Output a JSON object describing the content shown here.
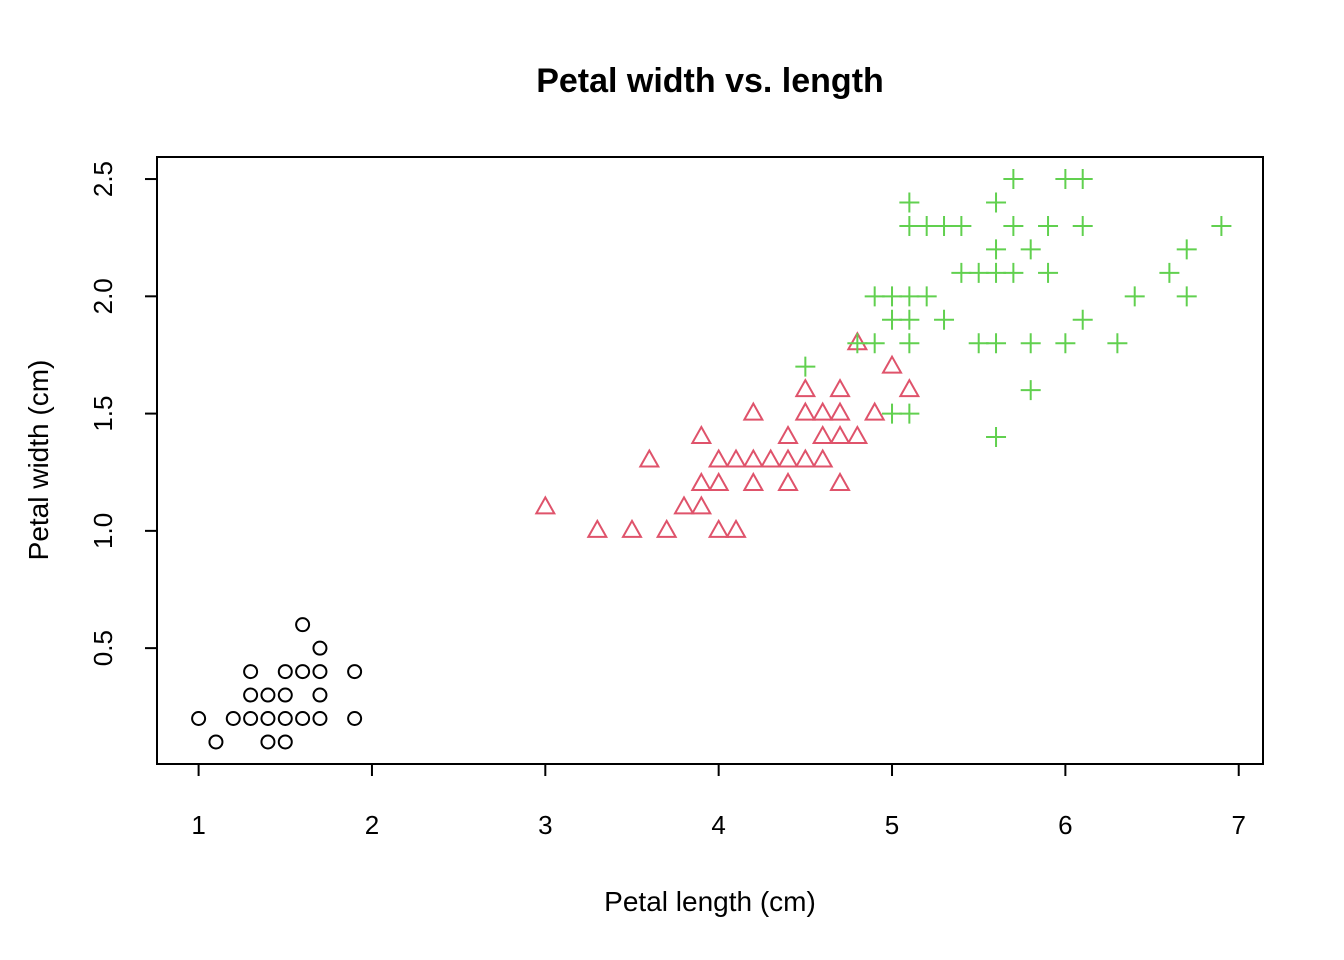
{
  "chart_data": {
    "type": "scatter",
    "title": "Petal width vs. length",
    "xlabel": "Petal length (cm)",
    "ylabel": "Petal width (cm)",
    "xlim": [
      0.76,
      7.14
    ],
    "ylim": [
      0.006,
      2.594
    ],
    "xticks": [
      1,
      2,
      3,
      4,
      5,
      6,
      7
    ],
    "yticks": [
      0.5,
      1.0,
      1.5,
      2.0,
      2.5
    ],
    "xtick_labels": [
      "1",
      "2",
      "3",
      "4",
      "5",
      "6",
      "7"
    ],
    "ytick_labels": [
      "0.5",
      "1.0",
      "1.5",
      "2.0",
      "2.5"
    ],
    "grid": false,
    "legend": "none",
    "series": [
      {
        "marker": "circle",
        "color": "#000000",
        "points": [
          [
            1.0,
            0.2
          ],
          [
            1.1,
            0.1
          ],
          [
            1.2,
            0.2
          ],
          [
            1.3,
            0.2
          ],
          [
            1.3,
            0.3
          ],
          [
            1.3,
            0.4
          ],
          [
            1.4,
            0.1
          ],
          [
            1.4,
            0.2
          ],
          [
            1.4,
            0.3
          ],
          [
            1.5,
            0.1
          ],
          [
            1.5,
            0.2
          ],
          [
            1.5,
            0.3
          ],
          [
            1.5,
            0.4
          ],
          [
            1.6,
            0.2
          ],
          [
            1.6,
            0.4
          ],
          [
            1.6,
            0.6
          ],
          [
            1.7,
            0.2
          ],
          [
            1.7,
            0.3
          ],
          [
            1.7,
            0.4
          ],
          [
            1.7,
            0.5
          ],
          [
            1.9,
            0.2
          ],
          [
            1.9,
            0.4
          ]
        ]
      },
      {
        "marker": "triangle",
        "color": "#DF536B",
        "points": [
          [
            3.0,
            1.1
          ],
          [
            3.3,
            1.0
          ],
          [
            3.5,
            1.0
          ],
          [
            3.6,
            1.3
          ],
          [
            3.7,
            1.0
          ],
          [
            3.8,
            1.1
          ],
          [
            3.9,
            1.1
          ],
          [
            3.9,
            1.2
          ],
          [
            3.9,
            1.4
          ],
          [
            4.0,
            1.0
          ],
          [
            4.0,
            1.2
          ],
          [
            4.0,
            1.3
          ],
          [
            4.1,
            1.0
          ],
          [
            4.1,
            1.3
          ],
          [
            4.2,
            1.2
          ],
          [
            4.2,
            1.3
          ],
          [
            4.2,
            1.5
          ],
          [
            4.3,
            1.3
          ],
          [
            4.4,
            1.2
          ],
          [
            4.4,
            1.3
          ],
          [
            4.4,
            1.4
          ],
          [
            4.5,
            1.3
          ],
          [
            4.5,
            1.5
          ],
          [
            4.5,
            1.6
          ],
          [
            4.6,
            1.3
          ],
          [
            4.6,
            1.4
          ],
          [
            4.6,
            1.5
          ],
          [
            4.7,
            1.2
          ],
          [
            4.7,
            1.4
          ],
          [
            4.7,
            1.5
          ],
          [
            4.7,
            1.6
          ],
          [
            4.8,
            1.4
          ],
          [
            4.8,
            1.8
          ],
          [
            4.9,
            1.5
          ],
          [
            5.0,
            1.7
          ],
          [
            5.1,
            1.6
          ]
        ]
      },
      {
        "marker": "plus",
        "color": "#61D04F",
        "points": [
          [
            4.5,
            1.7
          ],
          [
            4.8,
            1.8
          ],
          [
            4.9,
            1.8
          ],
          [
            4.9,
            2.0
          ],
          [
            5.0,
            1.5
          ],
          [
            5.0,
            1.9
          ],
          [
            5.0,
            2.0
          ],
          [
            5.1,
            1.5
          ],
          [
            5.1,
            1.8
          ],
          [
            5.1,
            1.9
          ],
          [
            5.1,
            2.0
          ],
          [
            5.1,
            2.3
          ],
          [
            5.1,
            2.4
          ],
          [
            5.2,
            2.0
          ],
          [
            5.2,
            2.3
          ],
          [
            5.3,
            1.9
          ],
          [
            5.3,
            2.3
          ],
          [
            5.4,
            2.1
          ],
          [
            5.4,
            2.3
          ],
          [
            5.5,
            1.8
          ],
          [
            5.5,
            2.1
          ],
          [
            5.6,
            1.4
          ],
          [
            5.6,
            1.8
          ],
          [
            5.6,
            2.1
          ],
          [
            5.6,
            2.2
          ],
          [
            5.6,
            2.4
          ],
          [
            5.7,
            2.1
          ],
          [
            5.7,
            2.3
          ],
          [
            5.7,
            2.5
          ],
          [
            5.8,
            1.6
          ],
          [
            5.8,
            1.8
          ],
          [
            5.8,
            2.2
          ],
          [
            5.9,
            2.1
          ],
          [
            5.9,
            2.3
          ],
          [
            6.0,
            1.8
          ],
          [
            6.0,
            2.5
          ],
          [
            6.1,
            1.9
          ],
          [
            6.1,
            2.3
          ],
          [
            6.1,
            2.5
          ],
          [
            6.3,
            1.8
          ],
          [
            6.4,
            2.0
          ],
          [
            6.6,
            2.1
          ],
          [
            6.7,
            2.0
          ],
          [
            6.7,
            2.2
          ],
          [
            6.9,
            2.3
          ]
        ]
      }
    ]
  }
}
